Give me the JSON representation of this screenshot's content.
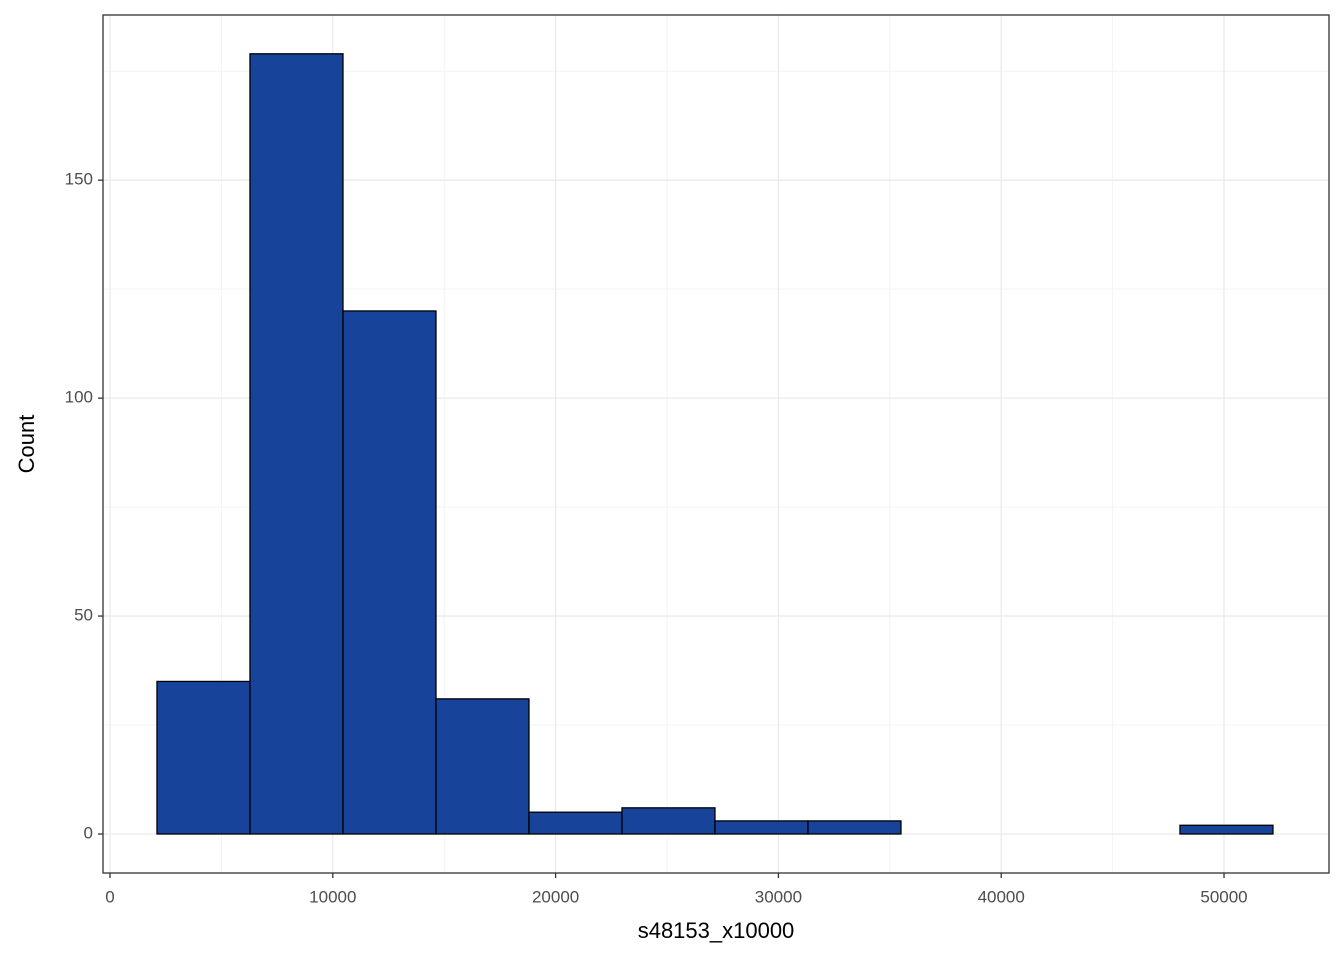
{
  "chart_data": {
    "type": "histogram",
    "x_label": "s48153_x10000",
    "y_label": "Count",
    "bins": [
      2109,
      6283,
      10457,
      14631,
      18805,
      22979,
      27153,
      31327,
      35501,
      39675,
      43849,
      48023,
      52197
    ],
    "values": [
      35,
      179,
      120,
      31,
      5,
      6,
      3,
      3,
      0,
      0,
      0,
      2
    ],
    "color": "#18439a",
    "xlim": [
      -314,
      54712
    ],
    "xticks": [
      0,
      10000,
      20000,
      30000,
      40000,
      50000
    ],
    "ylim": [
      -8.95,
      187.9
    ],
    "yticks": [
      0,
      50,
      100,
      150
    ],
    "grid": true
  }
}
